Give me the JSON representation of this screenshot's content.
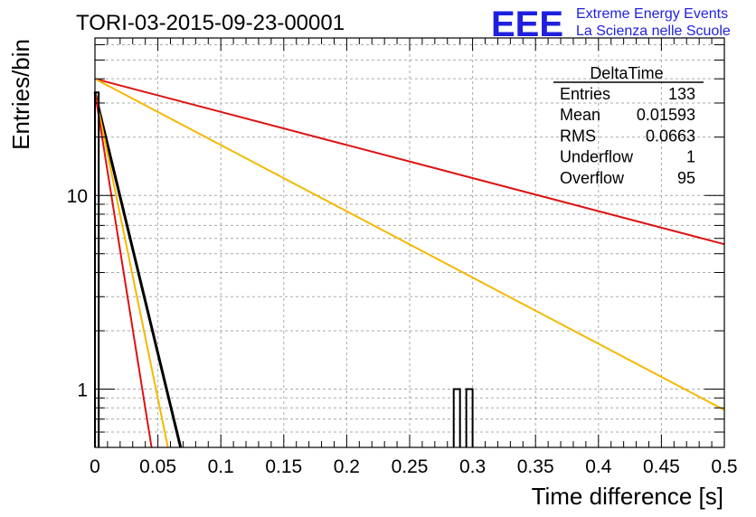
{
  "header": {
    "run_title": "TORI-03-2015-09-23-00001",
    "logo_text": "EEE",
    "logo_line1": "Extreme Energy Events",
    "logo_line2": "La Scienza nelle Scuole",
    "logo_color": "#1f1fe0"
  },
  "stats": {
    "title": "DeltaTime",
    "rows": [
      {
        "label": "Entries",
        "value": "133"
      },
      {
        "label": "Mean",
        "value": "0.01593"
      },
      {
        "label": "RMS",
        "value": "0.0663"
      },
      {
        "label": "Underflow",
        "value": "1"
      },
      {
        "label": "Overflow",
        "value": "95"
      }
    ]
  },
  "chart_data": {
    "type": "line",
    "xlabel": "Time difference [s]",
    "ylabel": "Entries/bin",
    "xlim": [
      0,
      0.5
    ],
    "ylim": [
      0.5,
      65
    ],
    "y_scale": "log",
    "grid": true,
    "x_ticks": [
      0,
      0.05,
      0.1,
      0.15,
      0.2,
      0.25,
      0.3,
      0.35,
      0.4,
      0.45,
      0.5
    ],
    "x_tick_labels": [
      "0",
      "0.05",
      "0.1",
      "0.15",
      "0.2",
      "0.25",
      "0.3",
      "0.35",
      "0.4",
      "0.45",
      "0.5"
    ],
    "y_ticks": [
      1,
      10
    ],
    "y_tick_labels": [
      "1",
      "10"
    ],
    "histogram": {
      "color": "#000000",
      "bins": [
        {
          "x0": 0,
          "x1": 0.003,
          "value": 34
        },
        {
          "x0": 0.285,
          "x1": 0.29,
          "value": 1
        },
        {
          "x0": 0.295,
          "x1": 0.3,
          "value": 1
        }
      ]
    },
    "series": [
      {
        "color": "#dd1111",
        "x": [
          0,
          0.5
        ],
        "y": [
          40,
          5.6
        ]
      },
      {
        "color": "#f5b800",
        "x": [
          0,
          0.5
        ],
        "y": [
          40,
          0.78
        ]
      },
      {
        "color": "#000000",
        "x": [
          0,
          0.068
        ],
        "y": [
          34,
          0.5
        ]
      },
      {
        "color": "#f5b800",
        "x": [
          0,
          0.058
        ],
        "y": [
          34,
          0.5
        ]
      },
      {
        "color": "#dd1111",
        "x": [
          0,
          0.045
        ],
        "y": [
          34,
          0.5
        ]
      }
    ]
  }
}
